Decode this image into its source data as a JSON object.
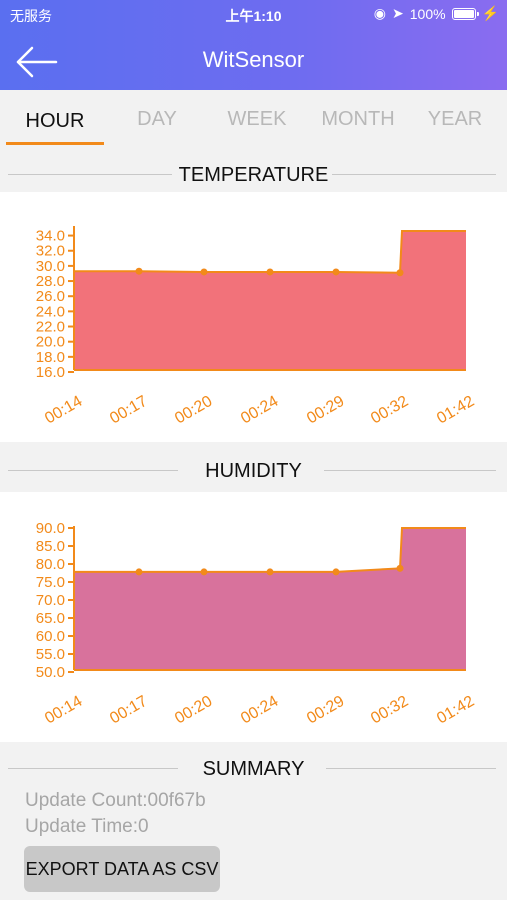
{
  "status_bar": {
    "carrier": "无服务",
    "time": "上午1:10",
    "battery": "100%"
  },
  "nav": {
    "title": "WitSensor",
    "back_icon": "arrow-left-icon"
  },
  "tabs": [
    {
      "label": "HOUR",
      "active": true
    },
    {
      "label": "DAY",
      "active": false
    },
    {
      "label": "WEEK",
      "active": false
    },
    {
      "label": "MONTH",
      "active": false
    },
    {
      "label": "YEAR",
      "active": false
    }
  ],
  "sections": {
    "temperature": "TEMPERATURE",
    "humidity": "HUMIDITY",
    "summary": "SUMMARY"
  },
  "colors": {
    "accent": "#f28a1a",
    "temperature_fill": "#f2727a",
    "humidity_fill": "#d8729c"
  },
  "chart_data": [
    {
      "type": "area",
      "title": "TEMPERATURE",
      "x": [
        "00:14",
        "00:17",
        "00:20",
        "00:24",
        "00:29",
        "00:32",
        "01:42"
      ],
      "values": [
        29.3,
        29.3,
        29.2,
        29.2,
        29.2,
        29.1,
        34.6
      ],
      "yticks": [
        "16.0",
        "18.0",
        "20.0",
        "22.0",
        "24.0",
        "26.0",
        "28.0",
        "30.0",
        "32.0",
        "34.0"
      ],
      "ylim": [
        16,
        35
      ]
    },
    {
      "type": "area",
      "title": "HUMIDITY",
      "x": [
        "00:14",
        "00:17",
        "00:20",
        "00:24",
        "00:29",
        "00:32",
        "01:42"
      ],
      "values": [
        77.8,
        77.8,
        77.8,
        77.8,
        77.8,
        78.8,
        90.0
      ],
      "yticks": [
        "50.0",
        "55.0",
        "60.0",
        "65.0",
        "70.0",
        "75.0",
        "80.0",
        "85.0",
        "90.0"
      ],
      "ylim": [
        50,
        90
      ]
    }
  ],
  "summary": {
    "update_count": "Update Count:00f67b",
    "update_time": "Update Time:0",
    "export_label": "EXPORT DATA AS CSV"
  }
}
